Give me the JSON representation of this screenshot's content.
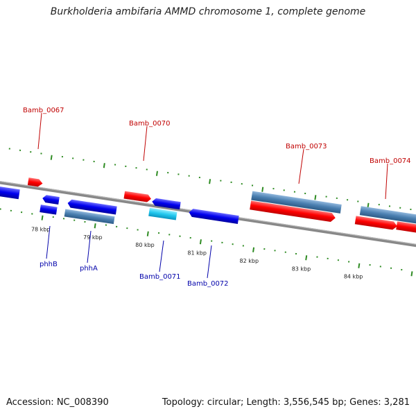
{
  "header": {
    "title": "Burkholderia ambifaria AMMD chromosome 1, complete genome"
  },
  "footer": {
    "accession": "Accession: NC_008390",
    "topology": "Topology: circular; Length: 3,556,545 bp; Genes: 3,281"
  },
  "scale_labels": [
    "78 kbp",
    "79 kbp",
    "80 kbp",
    "81 kbp",
    "82 kbp",
    "83 kbp",
    "84 kbp"
  ],
  "gene_labels": {
    "bamb_0067": "Bamb_0067",
    "bamb_0070": "Bamb_0070",
    "bamb_0073": "Bamb_0073",
    "bamb_0074": "Bamb_0074",
    "phhB": "phhB",
    "phhA": "phhA",
    "bamb_0071": "Bamb_0071",
    "bamb_0072": "Bamb_0072"
  },
  "colors": {
    "forward_cds": "#ff0000",
    "reverse_cds": "#0000ee",
    "steelblue_gene": "#4a7fb0",
    "cyan_gene": "#22c8ee",
    "backbone": "#888888",
    "ticks": "#2e8b22",
    "label_red": "#c00000",
    "label_blue": "#0000aa"
  }
}
